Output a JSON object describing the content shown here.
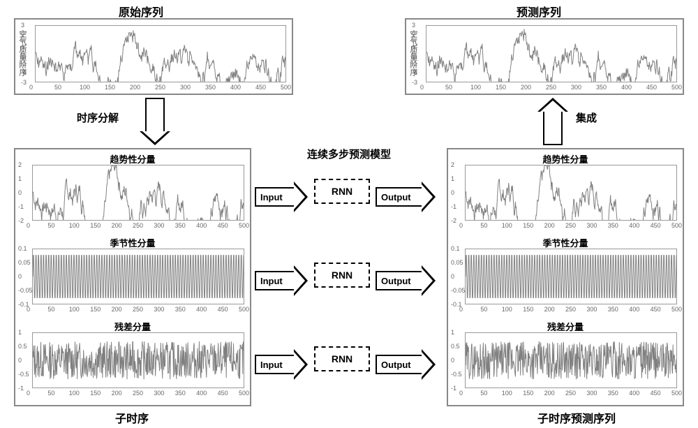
{
  "titles": {
    "original": "原始序列",
    "predicted": "预测序列",
    "decompose": "时序分解",
    "ensemble": "集成",
    "model": "连续多步预测模型",
    "sub_left": "子时序",
    "sub_right": "子时序预测序列",
    "trend": "趋势性分量",
    "seasonal": "季节性分量",
    "residual": "残差分量",
    "ylabel": "空气质量阶序",
    "input": "Input",
    "output": "Output",
    "rnn": "RNN"
  },
  "top_chart": {
    "type": "line",
    "xlim": [
      0,
      500
    ],
    "xtick_step": 50,
    "ylim": [
      -3,
      3
    ],
    "ytick_step": 1,
    "line_color": "#808080",
    "line_width": 1,
    "background_color": "#ffffff",
    "border_color": "#999999",
    "n_points": 500
  },
  "trend_chart": {
    "type": "line",
    "xlim": [
      0,
      500
    ],
    "xtick_step": 50,
    "ylim": [
      -2,
      2
    ],
    "ytick_step": 1,
    "line_color": "#808080",
    "line_width": 1,
    "background_color": "#ffffff",
    "n_points": 500
  },
  "seasonal_chart": {
    "type": "line",
    "xlim": [
      0,
      500
    ],
    "xtick_step": 50,
    "ylim": [
      -0.1,
      0.1
    ],
    "yticks": [
      -0.1,
      -0.05,
      0,
      0.05,
      0.1
    ],
    "line_color": "#808080",
    "line_width": 1,
    "period": 6,
    "amplitude": 0.09,
    "n_points": 500
  },
  "residual_chart": {
    "type": "line",
    "xlim": [
      0,
      500
    ],
    "xtick_step": 50,
    "ylim": [
      -1,
      1
    ],
    "ytick_step": 0.5,
    "line_color": "#808080",
    "line_width": 1,
    "n_points": 500
  },
  "layout": {
    "panel_border_color": "#888888",
    "arrow_border_color": "#000000",
    "arrow_fill_color": "#ffffff",
    "rnn_border_style": "dashed"
  }
}
